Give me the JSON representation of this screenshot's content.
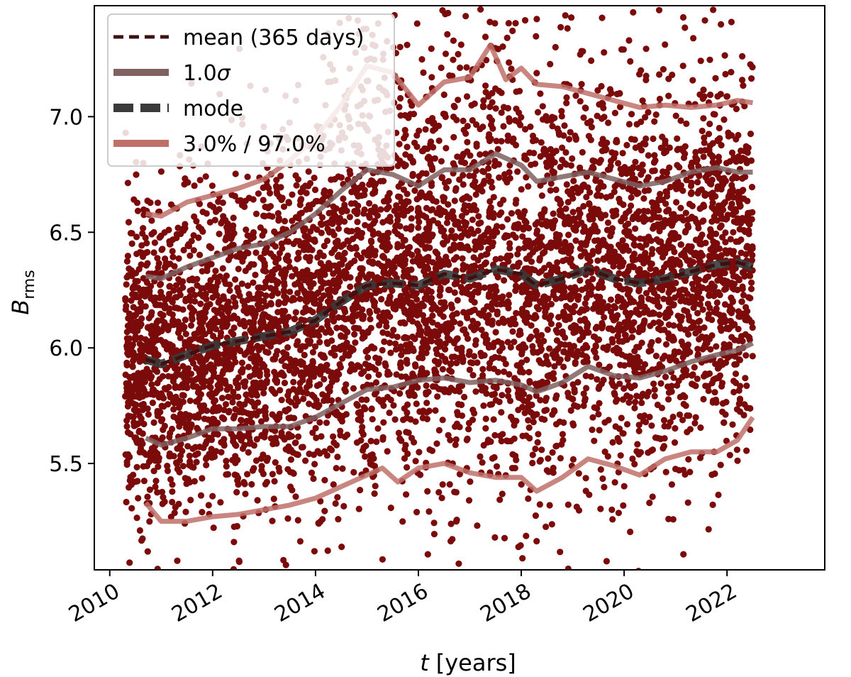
{
  "chart_data": {
    "type": "scatter",
    "title": "",
    "xlabel_var": "t",
    "xlabel_unit": "[years]",
    "ylabel_main": "B",
    "ylabel_sub": "rms",
    "xlim": [
      2009.7,
      2023.9
    ],
    "ylim": [
      5.04,
      7.48
    ],
    "xticks": [
      2010,
      2012,
      2014,
      2016,
      2018,
      2020,
      2022
    ],
    "xtick_labels": [
      "2010",
      "2012",
      "2014",
      "2016",
      "2018",
      "2020",
      "2022"
    ],
    "yticks": [
      5.5,
      6.0,
      6.5,
      7.0
    ],
    "ytick_labels": [
      "5.5",
      "6.0",
      "6.5",
      "7.0"
    ],
    "grid": false,
    "legend_position": "top-left",
    "scatter": {
      "color": "#7b0a0a",
      "x_range": [
        2010.3,
        2022.5
      ],
      "n_points": 6000
    },
    "series": [
      {
        "key": "mode",
        "name": "mode",
        "color": "#3a3a3a",
        "style": "dashed-thick",
        "x": [
          2010.7,
          2011.0,
          2011.5,
          2012.0,
          2012.5,
          2013.0,
          2013.5,
          2014.0,
          2014.5,
          2015.0,
          2015.5,
          2016.0,
          2016.5,
          2017.0,
          2017.5,
          2018.0,
          2018.3,
          2018.8,
          2019.3,
          2019.8,
          2020.3,
          2020.8,
          2021.3,
          2021.8,
          2022.2,
          2022.5
        ],
        "y": [
          5.95,
          5.93,
          5.97,
          6.01,
          6.03,
          6.05,
          6.07,
          6.12,
          6.2,
          6.27,
          6.28,
          6.27,
          6.32,
          6.3,
          6.34,
          6.32,
          6.27,
          6.3,
          6.34,
          6.3,
          6.28,
          6.3,
          6.33,
          6.36,
          6.37,
          6.35
        ]
      },
      {
        "key": "mean",
        "name": "mean (365 days)",
        "color": "#3e1010",
        "style": "dashed",
        "x": [
          2010.7,
          2011.0,
          2011.5,
          2012.0,
          2012.5,
          2013.0,
          2013.5,
          2014.0,
          2014.5,
          2015.0,
          2015.5,
          2016.0,
          2016.5,
          2017.0,
          2017.5,
          2018.0,
          2018.3,
          2018.8,
          2019.3,
          2019.8,
          2020.3,
          2020.8,
          2021.3,
          2021.8,
          2022.2,
          2022.5
        ],
        "y": [
          5.95,
          5.93,
          5.97,
          6.01,
          6.03,
          6.05,
          6.07,
          6.12,
          6.2,
          6.27,
          6.28,
          6.27,
          6.32,
          6.3,
          6.34,
          6.32,
          6.27,
          6.3,
          6.34,
          6.3,
          6.28,
          6.3,
          6.33,
          6.36,
          6.37,
          6.35
        ]
      },
      {
        "key": "sigma_upper",
        "name": "1.0σ",
        "color": "#806060",
        "style": "solid-thick",
        "x": [
          2010.7,
          2011.0,
          2011.5,
          2012.0,
          2012.5,
          2013.0,
          2013.5,
          2014.0,
          2014.5,
          2015.0,
          2015.5,
          2016.0,
          2016.5,
          2017.0,
          2017.5,
          2018.0,
          2018.3,
          2018.8,
          2019.3,
          2019.8,
          2020.3,
          2020.8,
          2021.3,
          2021.8,
          2022.2,
          2022.5
        ],
        "y": [
          6.31,
          6.3,
          6.35,
          6.39,
          6.43,
          6.45,
          6.5,
          6.58,
          6.68,
          6.77,
          6.75,
          6.7,
          6.77,
          6.77,
          6.84,
          6.79,
          6.72,
          6.74,
          6.76,
          6.73,
          6.7,
          6.72,
          6.76,
          6.78,
          6.76,
          6.76
        ]
      },
      {
        "key": "sigma_lower",
        "name": "",
        "color": "#806060",
        "style": "solid-thick",
        "x": [
          2010.7,
          2011.0,
          2011.5,
          2012.0,
          2012.5,
          2013.0,
          2013.5,
          2014.0,
          2014.5,
          2015.0,
          2015.5,
          2016.0,
          2016.5,
          2017.0,
          2017.5,
          2018.0,
          2018.3,
          2018.8,
          2019.3,
          2019.8,
          2020.3,
          2020.8,
          2021.3,
          2021.8,
          2022.2,
          2022.5
        ],
        "y": [
          5.61,
          5.58,
          5.61,
          5.65,
          5.65,
          5.66,
          5.66,
          5.7,
          5.76,
          5.82,
          5.83,
          5.86,
          5.87,
          5.85,
          5.86,
          5.84,
          5.81,
          5.85,
          5.92,
          5.88,
          5.87,
          5.9,
          5.94,
          5.97,
          5.99,
          6.02
        ]
      },
      {
        "key": "pct_upper",
        "name": "3.0% / 97.0%",
        "color": "#c07068",
        "style": "solid-thick",
        "x": [
          2010.7,
          2011.0,
          2011.5,
          2012.0,
          2012.5,
          2013.0,
          2013.5,
          2014.0,
          2014.5,
          2015.0,
          2015.5,
          2016.0,
          2016.5,
          2017.0,
          2017.4,
          2017.7,
          2018.0,
          2018.3,
          2018.8,
          2019.3,
          2019.8,
          2020.3,
          2020.8,
          2021.3,
          2021.8,
          2022.2,
          2022.5
        ],
        "y": [
          6.58,
          6.57,
          6.63,
          6.66,
          6.69,
          6.73,
          6.81,
          6.91,
          7.05,
          7.22,
          7.19,
          7.05,
          7.15,
          7.17,
          7.31,
          7.16,
          7.21,
          7.14,
          7.13,
          7.1,
          7.07,
          7.04,
          7.05,
          7.04,
          7.05,
          7.07,
          7.06
        ]
      },
      {
        "key": "pct_lower",
        "name": "",
        "color": "#c07068",
        "style": "solid-thick",
        "x": [
          2010.7,
          2011.0,
          2011.5,
          2012.0,
          2012.5,
          2013.0,
          2013.5,
          2014.0,
          2014.5,
          2015.0,
          2015.3,
          2015.6,
          2016.0,
          2016.5,
          2017.0,
          2017.5,
          2018.0,
          2018.3,
          2018.8,
          2019.3,
          2019.8,
          2020.3,
          2020.8,
          2021.3,
          2021.8,
          2022.2,
          2022.5
        ],
        "y": [
          5.33,
          5.25,
          5.25,
          5.27,
          5.28,
          5.3,
          5.32,
          5.35,
          5.4,
          5.45,
          5.48,
          5.42,
          5.48,
          5.5,
          5.46,
          5.44,
          5.44,
          5.38,
          5.44,
          5.52,
          5.49,
          5.45,
          5.52,
          5.55,
          5.55,
          5.6,
          5.7
        ]
      }
    ],
    "legend": [
      {
        "key": "mean",
        "label": "mean (365 days)"
      },
      {
        "key": "sigma",
        "label_main": "1.0",
        "label_sym": "σ"
      },
      {
        "key": "mode",
        "label": "mode"
      },
      {
        "key": "pct",
        "label": "3.0% / 97.0%"
      }
    ]
  }
}
